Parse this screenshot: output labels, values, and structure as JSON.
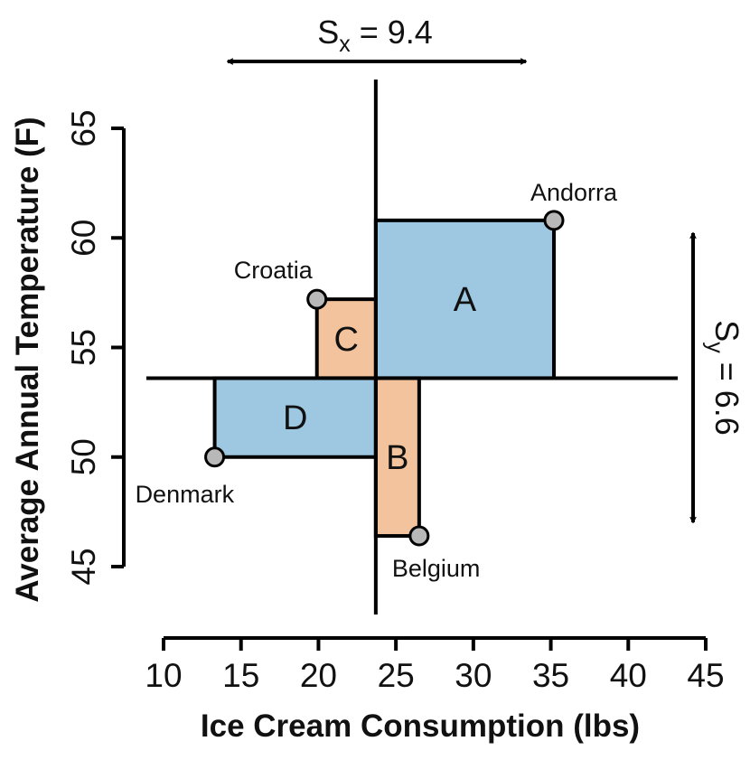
{
  "chart_data": {
    "type": "scatter",
    "xlabel": "Ice Cream Consumption (lbs)",
    "ylabel": "Average Annual Temperature (F)",
    "xlim": [
      10,
      45
    ],
    "ylim": [
      45,
      65
    ],
    "xticks": [
      "10",
      "15",
      "20",
      "25",
      "30",
      "35",
      "40",
      "45"
    ],
    "yticks": [
      "45",
      "50",
      "55",
      "60",
      "65"
    ],
    "mean": {
      "x": 23.7,
      "y": 53.6
    },
    "points": [
      {
        "label": "Andorra",
        "x": 35.2,
        "y": 60.8
      },
      {
        "label": "Croatia",
        "x": 19.9,
        "y": 57.2
      },
      {
        "label": "Denmark",
        "x": 13.3,
        "y": 50.0
      },
      {
        "label": "Belgium",
        "x": 26.5,
        "y": 46.4
      }
    ],
    "rectangles": [
      {
        "label": "A",
        "point": "Andorra",
        "color": "#9ec8e2"
      },
      {
        "label": "B",
        "point": "Belgium",
        "color": "#f2c39c"
      },
      {
        "label": "C",
        "point": "Croatia",
        "color": "#f2c39c"
      },
      {
        "label": "D",
        "point": "Denmark",
        "color": "#9ec8e2"
      }
    ],
    "sx": {
      "text": "S",
      "sub": "x",
      "rest": " = 9.4"
    },
    "sy": {
      "text": "S",
      "sub": "y",
      "rest": " = 6.6"
    },
    "colors": {
      "positive": "#9ec8e2",
      "negative": "#f2c39c",
      "point": "#b8b8b8",
      "line": "#000000"
    }
  }
}
